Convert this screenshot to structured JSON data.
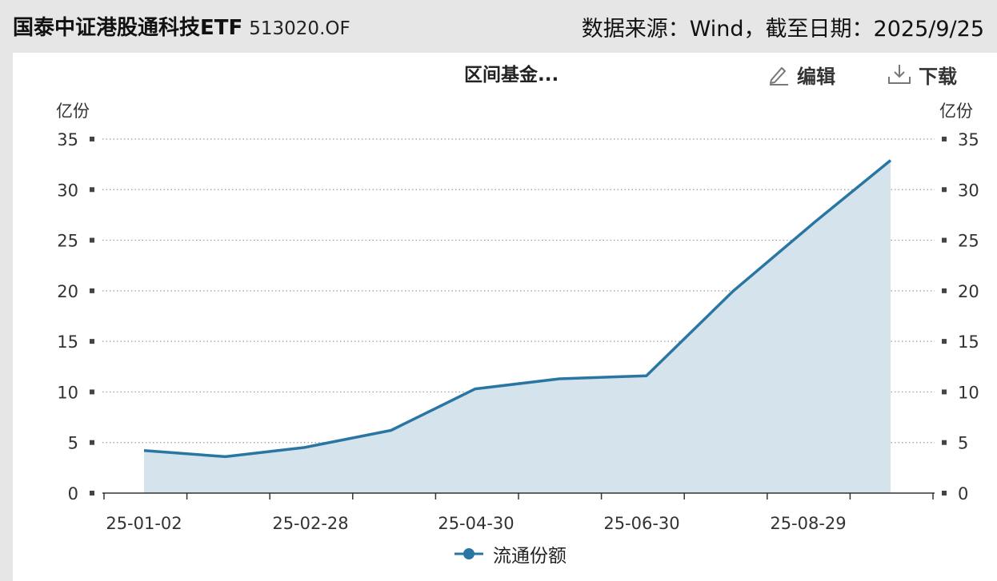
{
  "header": {
    "fund_name": "国泰中证港股通科技ETF",
    "fund_code": "513020.OF",
    "source_label": "数据来源：Wind，截至日期：2025/9/25"
  },
  "toolbar": {
    "edit_label": "编辑",
    "download_label": "下载"
  },
  "colors": {
    "line": "#2a76a3",
    "area": "#d5e3ec",
    "grid": "#9a9a9a"
  },
  "chart_data": {
    "type": "area",
    "title": "区间基金...",
    "ylabel_left": "亿份",
    "ylabel_right": "亿份",
    "ylim": [
      0,
      35
    ],
    "yticks": [
      0,
      5,
      10,
      15,
      20,
      25,
      30,
      35
    ],
    "xtick_labels": [
      "25-01-02",
      "25-02-28",
      "25-04-30",
      "25-06-30",
      "25-08-29"
    ],
    "grid": true,
    "legend_position": "bottom-center",
    "series": [
      {
        "name": "流通份额",
        "x": [
          "2025-01-02",
          "2025-01-31",
          "2025-02-28",
          "2025-03-31",
          "2025-04-30",
          "2025-05-30",
          "2025-06-30",
          "2025-07-31",
          "2025-08-29",
          "2025-09-25"
        ],
        "values": [
          4.2,
          3.6,
          4.5,
          6.2,
          10.3,
          11.3,
          11.6,
          20.0,
          26.8,
          32.9
        ]
      }
    ]
  }
}
